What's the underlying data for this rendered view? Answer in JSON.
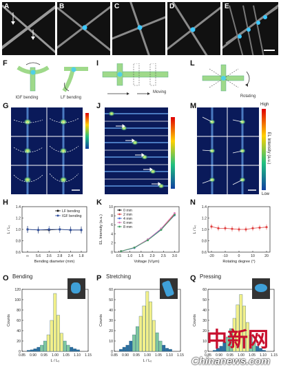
{
  "top_panels": [
    {
      "id": "A",
      "label": "A"
    },
    {
      "id": "B",
      "label": "B"
    },
    {
      "id": "C",
      "label": "C"
    },
    {
      "id": "D",
      "label": "D"
    },
    {
      "id": "E",
      "label": "E"
    }
  ],
  "schematics": {
    "F": {
      "label": "F",
      "captions": [
        "IGF bending",
        "LF bending"
      ]
    },
    "I": {
      "label": "I",
      "caption": "Moving"
    },
    "L": {
      "label": "L",
      "caption": "Rotating"
    }
  },
  "colorbars": {
    "M": {
      "high": "High",
      "low": "Low",
      "title": "EL Intensity (a.u.)"
    }
  },
  "panel_labels": {
    "G": "G",
    "J": "J",
    "M": "M",
    "H": "H",
    "K": "K",
    "N": "N",
    "O": "O",
    "P": "P",
    "Q": "Q"
  },
  "chart_data": [
    {
      "id": "H",
      "type": "line",
      "xlabel": "Bending diameter (mm)",
      "ylabel": "L / L₀",
      "x_ticks": [
        "∞",
        "5.6",
        "3.6",
        "2.8",
        "2.4",
        "1.8"
      ],
      "ylim": [
        0.6,
        1.4
      ],
      "y_ticks": [
        "0.6",
        "0.8",
        "1.0",
        "1.2",
        "1.4"
      ],
      "legend": [
        "LF bending",
        "IGF bending"
      ],
      "series": [
        {
          "name": "LF bending",
          "values": [
            1.0,
            0.99,
            0.99,
            1.0,
            0.99,
            0.99
          ]
        },
        {
          "name": "IGF bending",
          "values": [
            1.0,
            0.99,
            1.0,
            1.0,
            0.99,
            0.99
          ]
        }
      ],
      "grid": false,
      "legend_position": "top-right"
    },
    {
      "id": "K",
      "type": "line",
      "xlabel": "Voltage (V/μm)",
      "ylabel": "EL Intensity (a.u.)",
      "x": [
        0.6,
        1.2,
        1.8,
        2.4,
        3.0
      ],
      "x_ticks": [
        "0.5",
        "1.0",
        "1.5",
        "2.0",
        "2.5",
        "3.0"
      ],
      "ylim": [
        0,
        10
      ],
      "y_ticks": [
        "0",
        "2",
        "4",
        "6",
        "8",
        "10"
      ],
      "legend": [
        "0 mm",
        "2 mm",
        "4 mm",
        "6 mm",
        "8 mm"
      ],
      "series": [
        {
          "name": "0 mm",
          "values": [
            0.2,
            1.0,
            2.8,
            5.1,
            8.3
          ]
        },
        {
          "name": "2 mm",
          "values": [
            0.2,
            1.0,
            2.7,
            5.0,
            8.4
          ]
        },
        {
          "name": "4 mm",
          "values": [
            0.2,
            0.9,
            2.7,
            5.0,
            8.1
          ]
        },
        {
          "name": "6 mm",
          "values": [
            0.2,
            1.0,
            2.8,
            5.2,
            8.6
          ]
        },
        {
          "name": "8 mm",
          "values": [
            0.2,
            1.0,
            2.6,
            4.9,
            8.2
          ]
        }
      ],
      "colors": [
        "#222222",
        "#e05050",
        "#4a6fd8",
        "#e080c0",
        "#40a060"
      ],
      "grid": false,
      "legend_position": "top-left"
    },
    {
      "id": "N",
      "type": "line",
      "xlabel": "Rotating degree (°)",
      "ylabel": "L / L₀",
      "x": [
        -20,
        -15,
        -10,
        -5,
        0,
        5,
        10,
        15,
        20
      ],
      "x_ticks": [
        "-20",
        "-10",
        "0",
        "10",
        "20"
      ],
      "ylim": [
        0.6,
        1.4
      ],
      "y_ticks": [
        "0.6",
        "0.8",
        "1.0",
        "1.2",
        "1.4"
      ],
      "series": [
        {
          "values": [
            1.05,
            1.02,
            1.02,
            1.01,
            1.0,
            1.0,
            1.02,
            1.03,
            1.04
          ]
        }
      ],
      "color": "#e04040",
      "grid": false
    },
    {
      "id": "O",
      "type": "bar",
      "title": "Bending",
      "xlabel": "L / L₀",
      "ylabel": "Counts",
      "xlim": [
        0.85,
        1.15
      ],
      "x_ticks": [
        "0.85",
        "0.90",
        "0.95",
        "1.00",
        "1.05",
        "1.10",
        "1.15"
      ],
      "ylim": [
        0,
        120
      ],
      "y_ticks": [
        "0",
        "20",
        "40",
        "60",
        "80",
        "100",
        "120"
      ],
      "bins": [
        0.88,
        0.895,
        0.91,
        0.925,
        0.94,
        0.955,
        0.97,
        0.985,
        1.0,
        1.015,
        1.03,
        1.045,
        1.06,
        1.075,
        1.09,
        1.105
      ],
      "values": [
        2,
        3,
        5,
        8,
        12,
        20,
        32,
        60,
        112,
        70,
        35,
        20,
        12,
        8,
        5,
        3
      ]
    },
    {
      "id": "P",
      "type": "bar",
      "title": "Stretching",
      "xlabel": "L / L₀",
      "ylabel": "Counts",
      "xlim": [
        0.85,
        1.15
      ],
      "x_ticks": [
        "0.85",
        "0.90",
        "0.95",
        "1.00",
        "1.05",
        "1.10",
        "1.15"
      ],
      "ylim": [
        0,
        60
      ],
      "y_ticks": [
        "0",
        "10",
        "20",
        "30",
        "40",
        "50",
        "60"
      ],
      "bins": [
        0.88,
        0.895,
        0.91,
        0.925,
        0.94,
        0.955,
        0.97,
        0.985,
        1.0,
        1.015,
        1.03,
        1.045,
        1.06,
        1.075,
        1.09,
        1.105
      ],
      "values": [
        2,
        4,
        6,
        10,
        16,
        24,
        34,
        44,
        58,
        48,
        30,
        18,
        10,
        6,
        3,
        2
      ]
    },
    {
      "id": "Q",
      "type": "bar",
      "title": "Pressing",
      "xlabel": "L / L₀",
      "ylabel": "Counts",
      "xlim": [
        0.85,
        1.15
      ],
      "x_ticks": [
        "0.85",
        "0.90",
        "0.95",
        "1.00",
        "1.05",
        "1.10",
        "1.15"
      ],
      "ylim": [
        0,
        60
      ],
      "y_ticks": [
        "0",
        "10",
        "20",
        "30",
        "40",
        "50",
        "60"
      ],
      "bins": [
        0.88,
        0.895,
        0.91,
        0.925,
        0.94,
        0.955,
        0.97,
        0.985,
        1.0,
        1.015,
        1.03,
        1.045,
        1.06,
        1.075,
        1.09,
        1.105
      ],
      "values": [
        1,
        3,
        5,
        9,
        14,
        22,
        32,
        45,
        55,
        44,
        28,
        16,
        9,
        5,
        3,
        1
      ]
    }
  ],
  "watermark": {
    "cn": "中新网",
    "en": "Chinanews.com"
  }
}
